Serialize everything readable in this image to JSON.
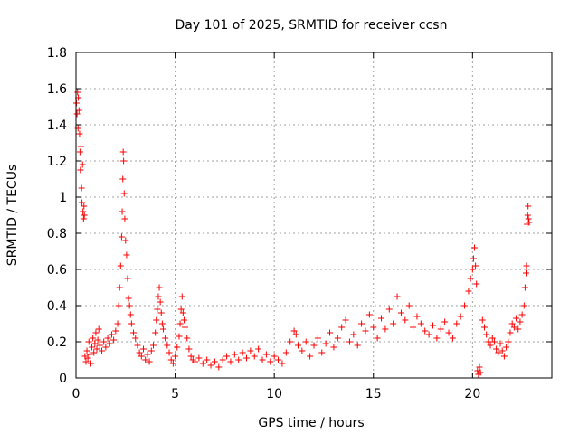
{
  "chart_data": {
    "type": "scatter",
    "title": "Day 101 of 2025, SRMTID for receiver ccsn",
    "xlabel": "GPS time / hours",
    "ylabel": "SRMTID / TECUs",
    "xlim": [
      0,
      24
    ],
    "ylim": [
      0,
      1.8
    ],
    "xticks": [
      0,
      5,
      10,
      15,
      20
    ],
    "xtick_labels": [
      "0",
      "5",
      "10",
      "15",
      "20"
    ],
    "yticks": [
      0,
      0.2,
      0.4,
      0.6,
      0.8,
      1.0,
      1.2,
      1.4,
      1.6,
      1.8
    ],
    "ytick_labels": [
      "0",
      "0.2",
      "0.4",
      "0.6",
      "0.8",
      "1",
      "1.2",
      "1.4",
      "1.6",
      "1.8"
    ],
    "grid": true,
    "marker": "plus",
    "color": "#ff0000",
    "series": [
      {
        "name": "SRMTID",
        "points": [
          [
            0.02,
            1.52
          ],
          [
            0.05,
            1.46
          ],
          [
            0.08,
            1.58
          ],
          [
            0.1,
            1.38
          ],
          [
            0.12,
            1.55
          ],
          [
            0.15,
            1.48
          ],
          [
            0.18,
            1.35
          ],
          [
            0.2,
            1.25
          ],
          [
            0.22,
            1.15
          ],
          [
            0.25,
            1.28
          ],
          [
            0.28,
            1.05
          ],
          [
            0.3,
            0.97
          ],
          [
            0.33,
            1.18
          ],
          [
            0.35,
            0.92
          ],
          [
            0.38,
            0.88
          ],
          [
            0.4,
            0.95
          ],
          [
            0.42,
            0.9
          ],
          [
            0.45,
            0.12
          ],
          [
            0.5,
            0.09
          ],
          [
            0.55,
            0.15
          ],
          [
            0.6,
            0.11
          ],
          [
            0.65,
            0.2
          ],
          [
            0.7,
            0.13
          ],
          [
            0.75,
            0.08
          ],
          [
            0.8,
            0.17
          ],
          [
            0.85,
            0.22
          ],
          [
            0.9,
            0.14
          ],
          [
            0.95,
            0.19
          ],
          [
            1.0,
            0.25
          ],
          [
            1.05,
            0.16
          ],
          [
            1.1,
            0.21
          ],
          [
            1.15,
            0.27
          ],
          [
            1.2,
            0.18
          ],
          [
            1.3,
            0.15
          ],
          [
            1.4,
            0.2
          ],
          [
            1.5,
            0.17
          ],
          [
            1.6,
            0.22
          ],
          [
            1.7,
            0.19
          ],
          [
            1.8,
            0.24
          ],
          [
            1.9,
            0.21
          ],
          [
            2.0,
            0.26
          ],
          [
            2.1,
            0.3
          ],
          [
            2.15,
            0.4
          ],
          [
            2.2,
            0.5
          ],
          [
            2.25,
            0.62
          ],
          [
            2.3,
            0.78
          ],
          [
            2.33,
            0.92
          ],
          [
            2.36,
            1.1
          ],
          [
            2.38,
            1.25
          ],
          [
            2.4,
            1.2
          ],
          [
            2.43,
            1.02
          ],
          [
            2.46,
            0.88
          ],
          [
            2.5,
            0.76
          ],
          [
            2.55,
            0.68
          ],
          [
            2.6,
            0.55
          ],
          [
            2.65,
            0.44
          ],
          [
            2.7,
            0.4
          ],
          [
            2.75,
            0.35
          ],
          [
            2.8,
            0.3
          ],
          [
            2.9,
            0.25
          ],
          [
            3.0,
            0.22
          ],
          [
            3.1,
            0.18
          ],
          [
            3.2,
            0.14
          ],
          [
            3.3,
            0.12
          ],
          [
            3.4,
            0.16
          ],
          [
            3.5,
            0.1
          ],
          [
            3.6,
            0.13
          ],
          [
            3.7,
            0.09
          ],
          [
            3.8,
            0.15
          ],
          [
            3.9,
            0.18
          ],
          [
            4.0,
            0.25
          ],
          [
            4.05,
            0.32
          ],
          [
            4.1,
            0.38
          ],
          [
            4.15,
            0.45
          ],
          [
            4.2,
            0.5
          ],
          [
            4.25,
            0.42
          ],
          [
            4.3,
            0.36
          ],
          [
            4.35,
            0.3
          ],
          [
            4.4,
            0.27
          ],
          [
            4.5,
            0.22
          ],
          [
            4.6,
            0.18
          ],
          [
            4.7,
            0.14
          ],
          [
            4.8,
            0.1
          ],
          [
            4.9,
            0.08
          ],
          [
            5.0,
            0.12
          ],
          [
            5.1,
            0.17
          ],
          [
            5.2,
            0.23
          ],
          [
            5.25,
            0.3
          ],
          [
            5.3,
            0.38
          ],
          [
            5.35,
            0.45
          ],
          [
            5.4,
            0.36
          ],
          [
            5.45,
            0.32
          ],
          [
            5.5,
            0.28
          ],
          [
            5.6,
            0.22
          ],
          [
            5.7,
            0.16
          ],
          [
            5.8,
            0.12
          ],
          [
            5.9,
            0.1
          ],
          [
            6.0,
            0.09
          ],
          [
            6.2,
            0.11
          ],
          [
            6.4,
            0.08
          ],
          [
            6.6,
            0.1
          ],
          [
            6.8,
            0.07
          ],
          [
            7.0,
            0.09
          ],
          [
            7.2,
            0.06
          ],
          [
            7.4,
            0.1
          ],
          [
            7.6,
            0.12
          ],
          [
            7.8,
            0.09
          ],
          [
            8.0,
            0.13
          ],
          [
            8.2,
            0.1
          ],
          [
            8.4,
            0.14
          ],
          [
            8.6,
            0.11
          ],
          [
            8.8,
            0.15
          ],
          [
            9.0,
            0.12
          ],
          [
            9.2,
            0.16
          ],
          [
            9.4,
            0.1
          ],
          [
            9.6,
            0.13
          ],
          [
            9.8,
            0.09
          ],
          [
            10.0,
            0.12
          ],
          [
            10.2,
            0.1
          ],
          [
            10.4,
            0.08
          ],
          [
            10.6,
            0.14
          ],
          [
            10.8,
            0.2
          ],
          [
            11.0,
            0.26
          ],
          [
            11.1,
            0.24
          ],
          [
            11.2,
            0.18
          ],
          [
            11.4,
            0.15
          ],
          [
            11.6,
            0.2
          ],
          [
            11.8,
            0.12
          ],
          [
            12.0,
            0.18
          ],
          [
            12.2,
            0.22
          ],
          [
            12.4,
            0.14
          ],
          [
            12.6,
            0.19
          ],
          [
            12.8,
            0.25
          ],
          [
            13.0,
            0.17
          ],
          [
            13.2,
            0.22
          ],
          [
            13.4,
            0.28
          ],
          [
            13.6,
            0.32
          ],
          [
            13.8,
            0.2
          ],
          [
            14.0,
            0.24
          ],
          [
            14.2,
            0.18
          ],
          [
            14.4,
            0.3
          ],
          [
            14.6,
            0.26
          ],
          [
            14.8,
            0.35
          ],
          [
            15.0,
            0.28
          ],
          [
            15.2,
            0.22
          ],
          [
            15.4,
            0.33
          ],
          [
            15.6,
            0.27
          ],
          [
            15.8,
            0.38
          ],
          [
            16.0,
            0.3
          ],
          [
            16.2,
            0.45
          ],
          [
            16.4,
            0.36
          ],
          [
            16.6,
            0.32
          ],
          [
            16.8,
            0.4
          ],
          [
            17.0,
            0.28
          ],
          [
            17.2,
            0.34
          ],
          [
            17.4,
            0.3
          ],
          [
            17.6,
            0.26
          ],
          [
            17.8,
            0.24
          ],
          [
            18.0,
            0.29
          ],
          [
            18.2,
            0.22
          ],
          [
            18.4,
            0.27
          ],
          [
            18.6,
            0.31
          ],
          [
            18.8,
            0.25
          ],
          [
            19.0,
            0.22
          ],
          [
            19.2,
            0.3
          ],
          [
            19.4,
            0.34
          ],
          [
            19.6,
            0.4
          ],
          [
            19.8,
            0.48
          ],
          [
            19.9,
            0.55
          ],
          [
            20.0,
            0.6
          ],
          [
            20.05,
            0.66
          ],
          [
            20.1,
            0.72
          ],
          [
            20.15,
            0.62
          ],
          [
            20.2,
            0.52
          ],
          [
            20.25,
            0.04
          ],
          [
            20.3,
            0.02
          ],
          [
            20.35,
            0.06
          ],
          [
            20.4,
            0.03
          ],
          [
            20.5,
            0.32
          ],
          [
            20.6,
            0.28
          ],
          [
            20.7,
            0.24
          ],
          [
            20.8,
            0.2
          ],
          [
            20.9,
            0.18
          ],
          [
            21.0,
            0.22
          ],
          [
            21.1,
            0.2
          ],
          [
            21.2,
            0.16
          ],
          [
            21.3,
            0.14
          ],
          [
            21.4,
            0.19
          ],
          [
            21.5,
            0.15
          ],
          [
            21.6,
            0.12
          ],
          [
            21.7,
            0.17
          ],
          [
            21.8,
            0.2
          ],
          [
            21.9,
            0.25
          ],
          [
            22.0,
            0.3
          ],
          [
            22.1,
            0.28
          ],
          [
            22.2,
            0.33
          ],
          [
            22.3,
            0.27
          ],
          [
            22.4,
            0.31
          ],
          [
            22.5,
            0.35
          ],
          [
            22.6,
            0.4
          ],
          [
            22.65,
            0.5
          ],
          [
            22.7,
            0.58
          ],
          [
            22.72,
            0.62
          ],
          [
            22.75,
            0.85
          ],
          [
            22.78,
            0.9
          ],
          [
            22.8,
            0.95
          ],
          [
            22.82,
            0.88
          ],
          [
            22.85,
            0.86
          ]
        ]
      }
    ]
  }
}
